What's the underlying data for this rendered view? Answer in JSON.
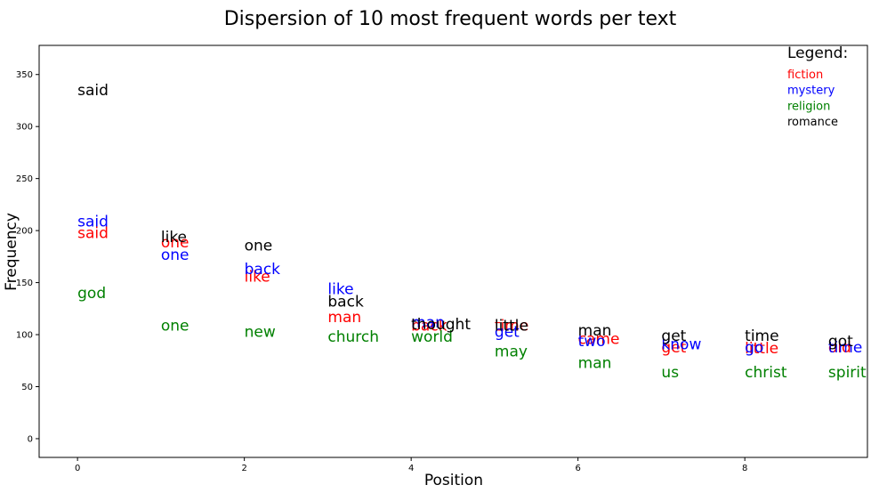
{
  "chart_data": {
    "type": "text-scatter",
    "title": "Dispersion of 10 most frequent words per text",
    "x_label": "Position",
    "y_label": "Frequency",
    "x": [
      0,
      1,
      2,
      3,
      4,
      5,
      6,
      7,
      8,
      9
    ],
    "xlim": [
      -0.46,
      9.47
    ],
    "xticks": [
      0,
      2,
      4,
      6,
      8
    ],
    "ylim": [
      -18,
      378
    ],
    "yticks": [
      0,
      50,
      100,
      150,
      200,
      250,
      300,
      350
    ],
    "legend_title": "Legend:",
    "legend": "upper right",
    "series": [
      {
        "name": "fiction",
        "color": "#ff0000",
        "words": [
          "said",
          "one",
          "like",
          "man",
          "back",
          "time",
          "came",
          "get",
          "little",
          "old"
        ],
        "values": [
          193,
          184,
          151,
          112,
          104,
          104,
          91,
          83,
          82,
          83
        ]
      },
      {
        "name": "mystery",
        "color": "#0000ff",
        "words": [
          "said",
          "one",
          "back",
          "like",
          "man",
          "get",
          "two",
          "know",
          "go",
          "time"
        ],
        "values": [
          204,
          172,
          158,
          139,
          107,
          98,
          89,
          86,
          83,
          83
        ]
      },
      {
        "name": "religion",
        "color": "#008000",
        "words": [
          "god",
          "one",
          "new",
          "church",
          "world",
          "may",
          "man",
          "us",
          "christ",
          "spirit"
        ],
        "values": [
          135,
          104,
          98,
          93,
          93,
          79,
          68,
          59,
          59,
          59
        ]
      },
      {
        "name": "romance",
        "color": "#000000",
        "words": [
          "said",
          "like",
          "one",
          "back",
          "thought",
          "little",
          "man",
          "get",
          "time",
          "got"
        ],
        "values": [
          330,
          189,
          181,
          127,
          105,
          104,
          99,
          94,
          94,
          89
        ]
      }
    ]
  }
}
